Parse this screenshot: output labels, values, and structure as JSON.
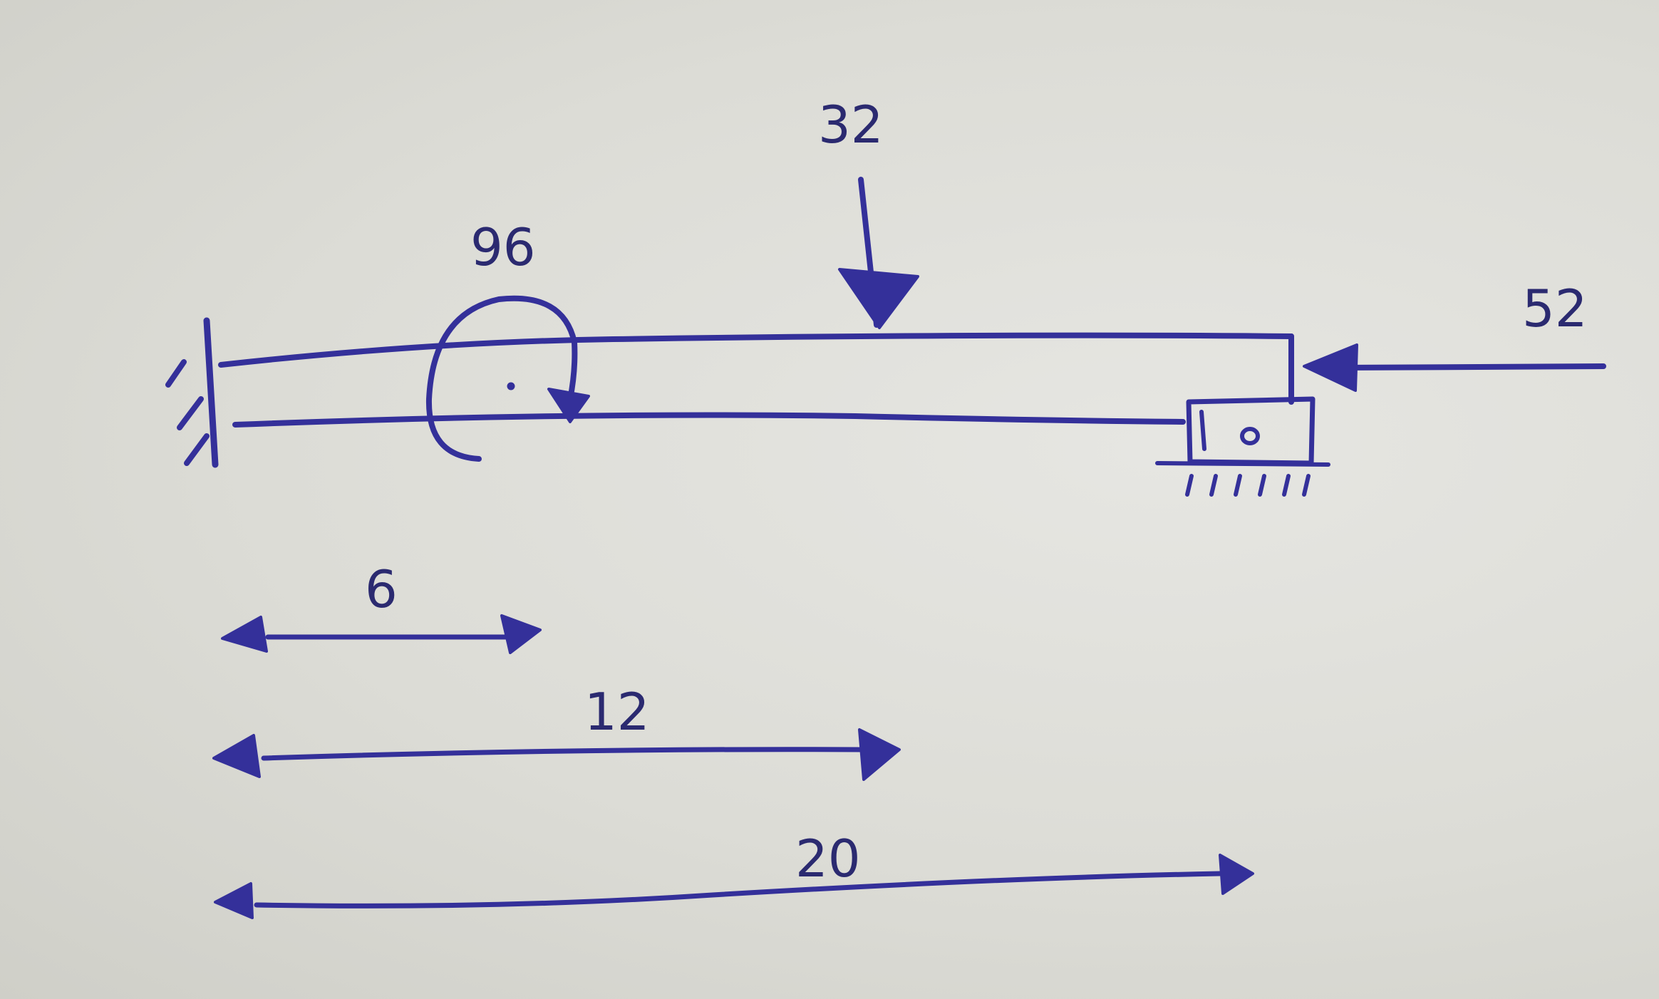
{
  "labels": {
    "vertical_load": "32",
    "moment": "96",
    "axial_load": "52",
    "dim_6": "6",
    "dim_12": "12",
    "dim_20": "20"
  },
  "colors": {
    "ink": "#34309a",
    "paper": "#dcdcd6"
  }
}
